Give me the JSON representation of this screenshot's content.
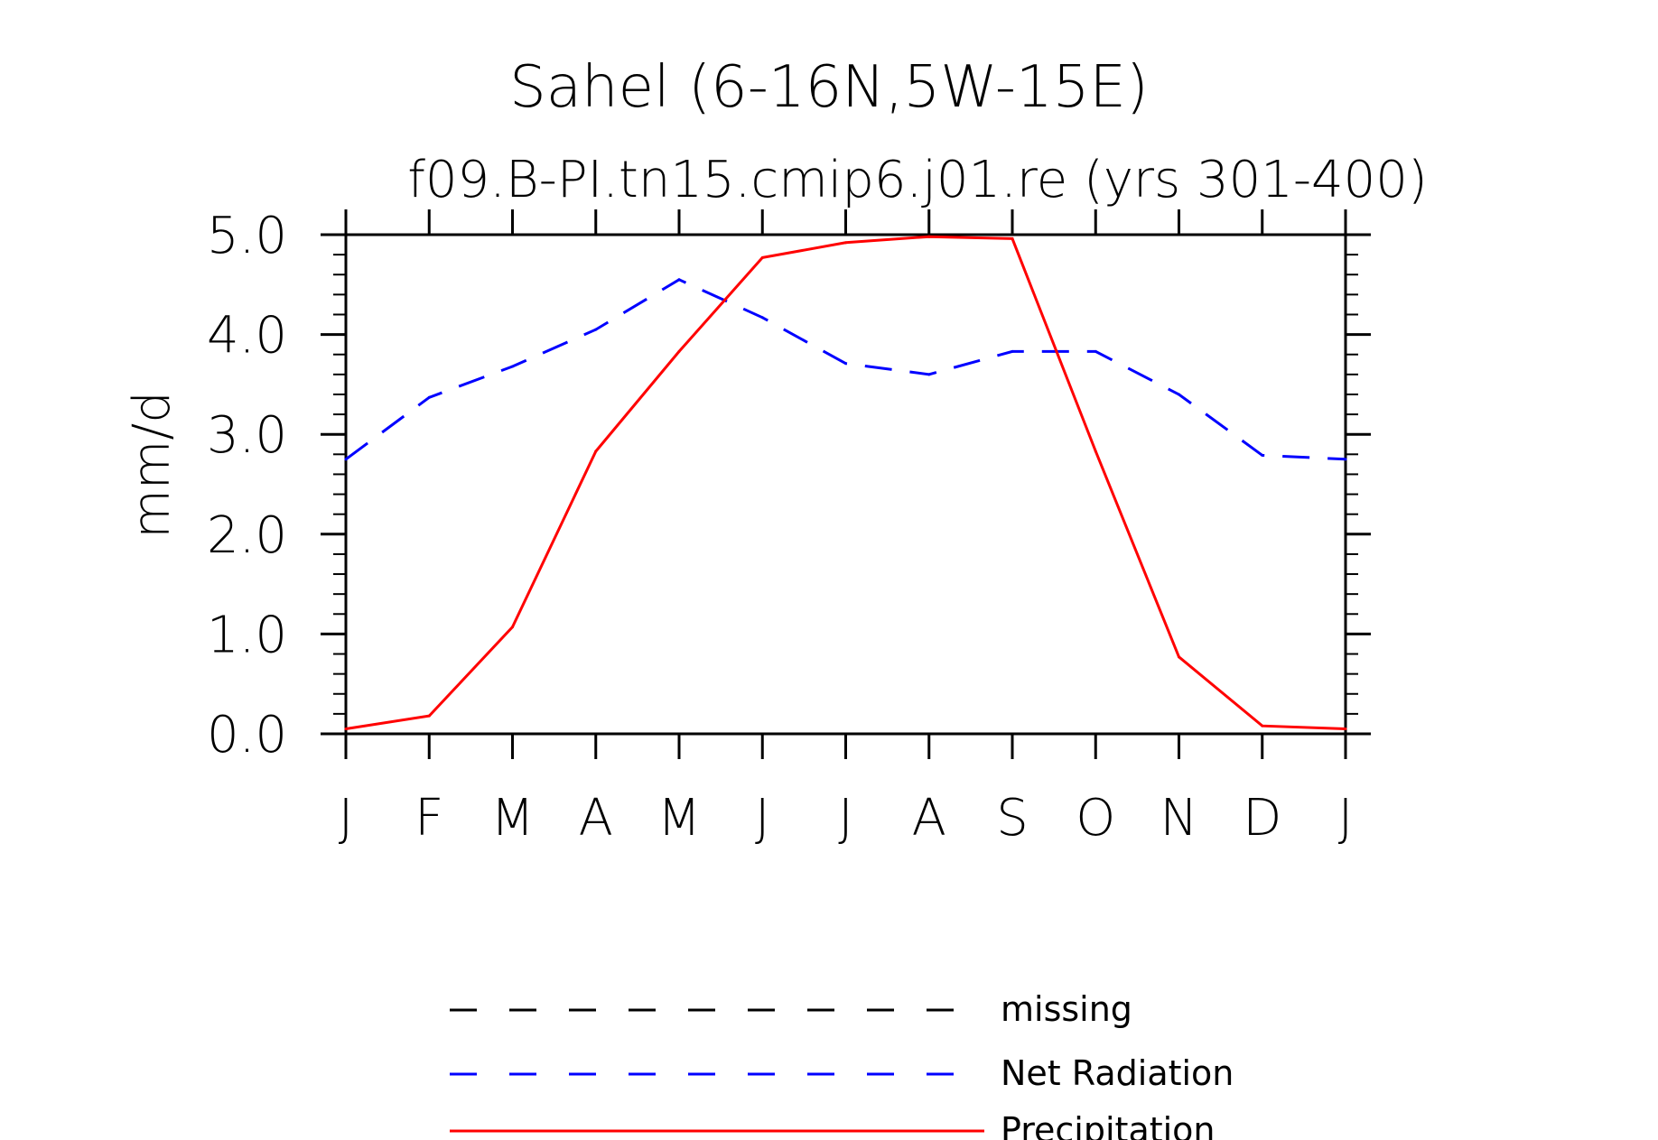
{
  "legend": {
    "items": [
      {
        "label": "missing",
        "color": "#000000",
        "style": "dashed"
      },
      {
        "label": "Net Radiation",
        "color": "#0000ff",
        "style": "dashed"
      },
      {
        "label": "Precipitation",
        "color": "#ff0000",
        "style": "solid"
      }
    ]
  },
  "chart_data": {
    "type": "line",
    "title": "Sahel (6-16N,5W-15E)",
    "subtitle": "f09.B-PI.tn15.cmip6.j01.re (yrs 301-400)",
    "ylabel": "mm/d",
    "categories": [
      "J",
      "F",
      "M",
      "A",
      "M",
      "J",
      "J",
      "A",
      "S",
      "O",
      "N",
      "D",
      "J"
    ],
    "yticks": [
      "0.0",
      "1.0",
      "2.0",
      "3.0",
      "4.0",
      "5.0"
    ],
    "ylim": [
      0,
      5
    ],
    "series": [
      {
        "name": "Net Radiation",
        "color": "#0000ff",
        "style": "dashed",
        "values": [
          2.75,
          3.37,
          3.68,
          4.05,
          4.55,
          4.17,
          3.71,
          3.6,
          3.83,
          3.83,
          3.4,
          2.79,
          2.75
        ]
      },
      {
        "name": "Precipitation",
        "color": "#ff0000",
        "style": "solid",
        "values": [
          0.05,
          0.18,
          1.07,
          2.83,
          3.83,
          4.77,
          4.92,
          4.98,
          4.96,
          2.83,
          0.77,
          0.08,
          0.05
        ]
      }
    ]
  }
}
